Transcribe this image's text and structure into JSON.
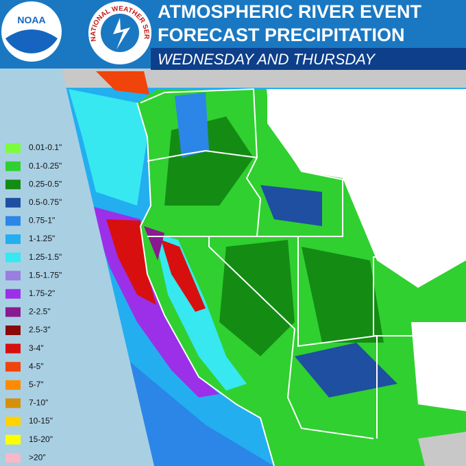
{
  "header": {
    "title_line1": "ATMOSPHERIC RIVER EVENT",
    "title_line2": "FORECAST PRECIPITATION",
    "subtitle": "WEDNESDAY AND THURSDAY"
  },
  "logos": {
    "noaa": "NOAA",
    "nws": "NATIONAL WEATHER SERVICE"
  },
  "legend": [
    {
      "label": "0.01-0.1\"",
      "color": "#7cfc3c"
    },
    {
      "label": "0.1-0.25\"",
      "color": "#30d030"
    },
    {
      "label": "0.25-0.5\"",
      "color": "#148c14"
    },
    {
      "label": "0.5-0.75\"",
      "color": "#1f4fa0"
    },
    {
      "label": "0.75-1\"",
      "color": "#2b86e8"
    },
    {
      "label": "1-1.25\"",
      "color": "#23aef0"
    },
    {
      "label": "1.25-1.5\"",
      "color": "#37e8f0"
    },
    {
      "label": "1.5-1.75\"",
      "color": "#9a7ee0"
    },
    {
      "label": "1.75-2\"",
      "color": "#9b30e8"
    },
    {
      "label": "2-2.5\"",
      "color": "#8a1a8f"
    },
    {
      "label": "2.5-3\"",
      "color": "#8a0a0a"
    },
    {
      "label": "3-4\"",
      "color": "#d80f0f"
    },
    {
      "label": "4-5\"",
      "color": "#f0440a"
    },
    {
      "label": "5-7\"",
      "color": "#ff8a00"
    },
    {
      "label": "7-10\"",
      "color": "#d4900c"
    },
    {
      "label": "10-15\"",
      "color": "#ffd200"
    },
    {
      "label": "15-20\"",
      "color": "#ffff00"
    },
    {
      "label": ">20\"",
      "color": "#f7b8c8"
    }
  ]
}
